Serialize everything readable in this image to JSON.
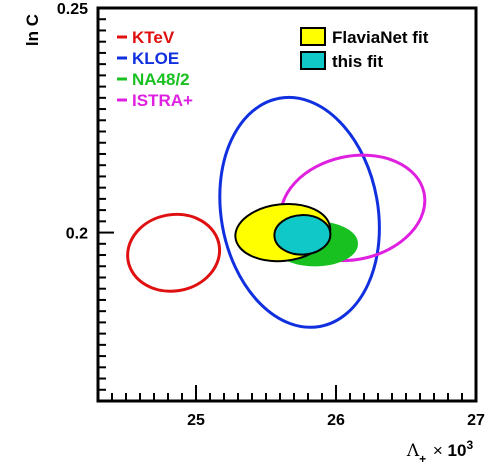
{
  "chart_data": {
    "type": "scatter",
    "subtype": "confidence-ellipses",
    "xlabel": "Λ₊ × 10³",
    "ylabel": "ln C",
    "xlim": [
      24.3,
      27
    ],
    "ylim": [
      0.1625,
      0.25
    ],
    "xticks": [
      {
        "value": 25,
        "label": "25"
      },
      {
        "value": 26,
        "label": "26"
      },
      {
        "value": 27,
        "label": "27"
      }
    ],
    "yticks": [
      {
        "value": 0.2,
        "label": "0.2"
      },
      {
        "value": 0.25,
        "label": "0.25"
      }
    ],
    "grid": false,
    "legend_left_position": "top-left",
    "legend_right_position": "top-right",
    "series": [
      {
        "name": "KTeV",
        "color": "#e01010",
        "style": "outline",
        "cx": 24.84,
        "cy": 0.1955,
        "rx": 0.33,
        "ry": 0.0085,
        "angle": -10
      },
      {
        "name": "KLOE",
        "color": "#1030e0",
        "style": "outline",
        "cx": 25.74,
        "cy": 0.2045,
        "rx": 0.56,
        "ry": 0.0258,
        "angle": -10
      },
      {
        "name": "NA48/2",
        "color": "#18c020",
        "style": "filled",
        "cx": 25.85,
        "cy": 0.1975,
        "rx": 0.3,
        "ry": 0.0048,
        "angle": 0
      },
      {
        "name": "ISTRA+",
        "color": "#e020e0",
        "style": "outline",
        "cx": 26.12,
        "cy": 0.2055,
        "rx": 0.52,
        "ry": 0.0115,
        "angle": -12
      },
      {
        "name": "FlaviaNet fit",
        "color": "#ffff00",
        "style": "filled-outlined",
        "cx": 25.62,
        "cy": 0.2,
        "rx": 0.34,
        "ry": 0.0063,
        "angle": -6
      },
      {
        "name": "this fit",
        "color": "#10c8c8",
        "style": "filled-outlined",
        "cx": 25.76,
        "cy": 0.1995,
        "rx": 0.2,
        "ry": 0.0044,
        "angle": -2
      }
    ],
    "legend_left": [
      {
        "label": "KTeV",
        "color": "#e01010"
      },
      {
        "label": "KLOE",
        "color": "#1030e0"
      },
      {
        "label": "NA48/2",
        "color": "#18c020"
      },
      {
        "label": "ISTRA+",
        "color": "#e020e0"
      }
    ],
    "legend_right": [
      {
        "label": "FlaviaNet fit",
        "color": "#ffff00"
      },
      {
        "label": "this fit",
        "color": "#10c8c8"
      }
    ]
  }
}
